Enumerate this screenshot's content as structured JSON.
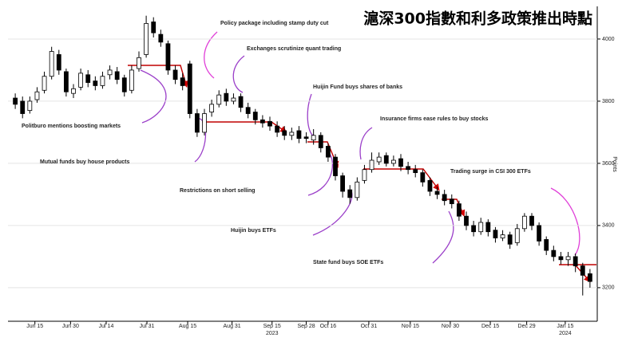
{
  "chart_data": {
    "type": "candlestick",
    "title": "滬深300指數和利多政策推出時點",
    "y_label": "Points",
    "open": [
      3810,
      3800,
      3770,
      3805,
      3835,
      3880,
      3950,
      3895,
      3825,
      3845,
      3885,
      3865,
      3850,
      3885,
      3895,
      3875,
      3835,
      3905,
      3950,
      4055,
      4015,
      3985,
      3900,
      3875,
      3920,
      3760,
      3700,
      3765,
      3790,
      3825,
      3800,
      3815,
      3780,
      3765,
      3740,
      3735,
      3720,
      3705,
      3690,
      3705,
      3685,
      3675,
      3690,
      3655,
      3620,
      3560,
      3515,
      3490,
      3545,
      3580,
      3605,
      3625,
      3600,
      3615,
      3590,
      3580,
      3570,
      3545,
      3510,
      3500,
      3485,
      3470,
      3430,
      3400,
      3380,
      3410,
      3385,
      3360,
      3370,
      3345,
      3390,
      3430,
      3400,
      3355,
      3320,
      3300,
      3290,
      3300,
      3270,
      3245
    ],
    "high": [
      3825,
      3815,
      3815,
      3845,
      3895,
      3975,
      3965,
      3905,
      3855,
      3905,
      3900,
      3880,
      3895,
      3915,
      3910,
      3885,
      3915,
      3960,
      4075,
      4070,
      4030,
      3995,
      3915,
      3890,
      3930,
      3775,
      3775,
      3805,
      3835,
      3840,
      3825,
      3825,
      3795,
      3775,
      3755,
      3750,
      3735,
      3720,
      3715,
      3720,
      3700,
      3710,
      3700,
      3665,
      3630,
      3570,
      3530,
      3555,
      3595,
      3635,
      3635,
      3635,
      3625,
      3630,
      3605,
      3595,
      3580,
      3555,
      3525,
      3515,
      3500,
      3480,
      3445,
      3415,
      3425,
      3420,
      3395,
      3385,
      3380,
      3405,
      3440,
      3440,
      3410,
      3365,
      3335,
      3315,
      3315,
      3310,
      3280,
      3260
    ],
    "low": [
      3775,
      3745,
      3760,
      3795,
      3825,
      3870,
      3885,
      3815,
      3810,
      3835,
      3845,
      3835,
      3840,
      3870,
      3855,
      3815,
      3825,
      3895,
      3940,
      4005,
      3975,
      3885,
      3855,
      3835,
      3745,
      3685,
      3690,
      3750,
      3780,
      3785,
      3790,
      3765,
      3745,
      3725,
      3715,
      3705,
      3685,
      3675,
      3675,
      3665,
      3665,
      3660,
      3635,
      3605,
      3545,
      3490,
      3470,
      3480,
      3535,
      3570,
      3595,
      3590,
      3590,
      3575,
      3565,
      3555,
      3525,
      3495,
      3485,
      3465,
      3455,
      3415,
      3385,
      3365,
      3370,
      3365,
      3345,
      3350,
      3325,
      3335,
      3380,
      3385,
      3335,
      3305,
      3285,
      3275,
      3270,
      3250,
      3175,
      3200
    ],
    "close": [
      3790,
      3760,
      3800,
      3830,
      3880,
      3960,
      3900,
      3830,
      3840,
      3890,
      3860,
      3850,
      3880,
      3900,
      3870,
      3830,
      3900,
      3940,
      4050,
      4020,
      3990,
      3900,
      3870,
      3850,
      3760,
      3700,
      3760,
      3790,
      3820,
      3800,
      3810,
      3780,
      3760,
      3740,
      3730,
      3720,
      3700,
      3690,
      3700,
      3680,
      3680,
      3690,
      3650,
      3620,
      3560,
      3510,
      3490,
      3540,
      3580,
      3610,
      3620,
      3600,
      3610,
      3590,
      3580,
      3570,
      3540,
      3510,
      3500,
      3480,
      3470,
      3430,
      3400,
      3380,
      3410,
      3380,
      3360,
      3370,
      3340,
      3390,
      3430,
      3400,
      3350,
      3320,
      3300,
      3290,
      3300,
      3270,
      3240,
      3220
    ],
    "up_color": "#ffffff",
    "down_color": "#000000",
    "xlim": [
      -1,
      80
    ],
    "xticks": [
      {
        "value": 2.7,
        "label": "Jun 15"
      },
      {
        "value": 7.6,
        "label": "Jun 30"
      },
      {
        "value": 12.5,
        "label": "Jul 14"
      },
      {
        "value": 18.1,
        "label": "Jul 31"
      },
      {
        "value": 23.7,
        "label": "Aug 15"
      },
      {
        "value": 29.8,
        "label": "Aug 31"
      },
      {
        "value": 35.3,
        "label": "Sep 15"
      },
      {
        "value": 40,
        "label": "Sep 28"
      },
      {
        "value": 43,
        "label": "Oct 16"
      },
      {
        "value": 48.6,
        "label": "Oct 31"
      },
      {
        "value": 54.3,
        "label": "Nov 15"
      },
      {
        "value": 59.8,
        "label": "Nov 30"
      },
      {
        "value": 65.3,
        "label": "Dec 15"
      },
      {
        "value": 70.3,
        "label": "Dec 29"
      },
      {
        "value": 75.6,
        "label": "Jan 15"
      }
    ],
    "xyears": [
      {
        "value": 35.3,
        "label": "2023"
      },
      {
        "value": 75.6,
        "label": "2024"
      }
    ],
    "ylim": [
      3092,
      4105
    ],
    "yticks": [
      3200,
      3400,
      3600,
      3800,
      4000
    ],
    "grid": true,
    "annotations": [
      "Policy package including stamp duty cut",
      "Exchanges scrutinize quant trading",
      "Huijin Fund buys shares of banks",
      "Politburo mentions boosting markets",
      "Insurance firms ease rules to buy stocks",
      "Mutual funds buy house products",
      "Trading surge in CSI 300 ETFs",
      "Restrictions on short selling",
      "Huijin buys ETFs",
      "State fund buys SOE ETFs"
    ]
  }
}
